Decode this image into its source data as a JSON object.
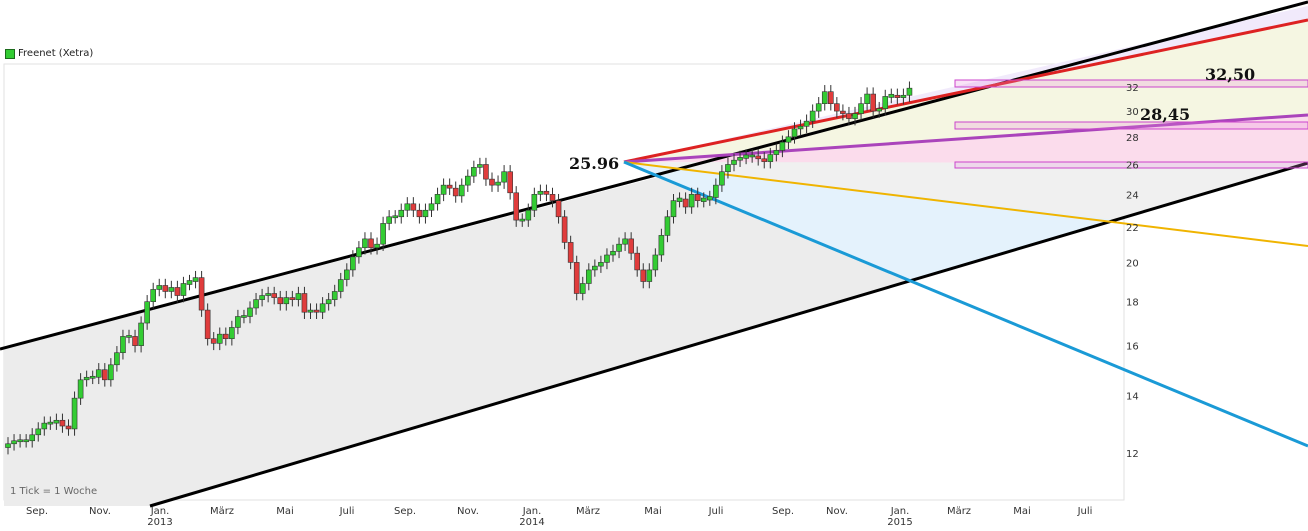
{
  "legend": {
    "label": "Freenet (Xetra)",
    "color": "#33cc33"
  },
  "footnote": "1 Tick = 1 Woche",
  "colors": {
    "up": "#33cc33",
    "down": "#e03c3c",
    "channel": "#000000",
    "red_line": "#dd2222",
    "purple_line": "#aa44bb",
    "orange_line": "#f0b400",
    "blue_line": "#1a9ad6",
    "box": "#cc44cc"
  },
  "chart_data": {
    "type": "candlestick",
    "y_scale": "log",
    "ylim": [
      10.5,
      34
    ],
    "y_ticks": [
      12,
      14,
      16,
      18,
      20,
      22,
      24,
      26,
      28,
      30,
      32
    ],
    "x_months": [
      "Sep.",
      "Nov.",
      "Jan.",
      "März",
      "Mai",
      "Juli",
      "Sep.",
      "Nov.",
      "Jan.",
      "März",
      "Mai",
      "Juli",
      "Sep.",
      "Nov.",
      "Jan.",
      "März",
      "Mai",
      "Juli"
    ],
    "x_years": [
      "2013",
      "2014",
      "2015"
    ],
    "weekly_close": [
      12.3,
      12.4,
      12.4,
      12.4,
      12.6,
      12.8,
      13.0,
      13.0,
      13.1,
      12.9,
      12.8,
      13.9,
      14.6,
      14.7,
      14.7,
      15.0,
      14.6,
      15.2,
      15.7,
      16.4,
      16.4,
      16.0,
      17.0,
      18.0,
      18.6,
      18.8,
      18.5,
      18.7,
      18.3,
      18.9,
      19.0,
      19.2,
      17.6,
      16.3,
      16.1,
      16.5,
      16.3,
      16.8,
      17.3,
      17.3,
      17.7,
      18.1,
      18.3,
      18.4,
      18.2,
      17.9,
      18.2,
      18.1,
      18.4,
      17.5,
      17.6,
      17.5,
      17.9,
      18.1,
      18.5,
      19.1,
      19.6,
      20.3,
      20.8,
      21.3,
      20.8,
      21.0,
      22.2,
      22.6,
      22.6,
      23.0,
      23.4,
      23.0,
      22.6,
      23.0,
      23.4,
      24.0,
      24.6,
      24.4,
      23.9,
      24.6,
      25.2,
      25.8,
      26.0,
      25.0,
      24.6,
      24.8,
      25.5,
      24.1,
      22.4,
      22.4,
      23.0,
      24.0,
      24.2,
      24.0,
      23.6,
      22.6,
      21.1,
      20.0,
      18.4,
      18.9,
      19.6,
      19.8,
      20.0,
      20.4,
      20.6,
      21.0,
      21.3,
      20.5,
      19.6,
      19.0,
      19.6,
      20.4,
      21.5,
      22.6,
      23.6,
      23.7,
      23.2,
      24.0,
      23.6,
      23.7,
      23.8,
      24.6,
      25.5,
      26.0,
      26.3,
      26.5,
      26.6,
      26.6,
      26.4,
      26.2,
      26.7,
      27.0,
      27.6,
      28.0,
      28.6,
      28.8,
      29.2,
      30.0,
      30.6,
      31.6,
      30.6,
      30.0,
      29.8,
      29.4,
      29.8,
      30.6,
      31.4,
      30.0,
      30.2,
      31.2,
      31.3,
      31.1,
      31.3,
      31.9
    ],
    "annotations": [
      {
        "label": "25.96",
        "value": 25.96
      },
      {
        "label": "32,50",
        "value": 32.5
      },
      {
        "label": "28,45",
        "value": 28.45
      }
    ]
  }
}
